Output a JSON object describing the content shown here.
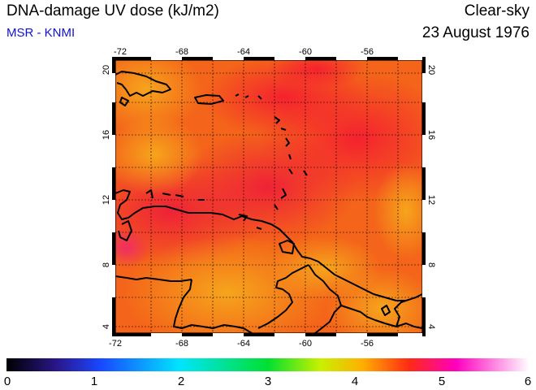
{
  "header": {
    "title": "DNA-damage UV dose (kJ/m2)",
    "source": "MSR - KNMI",
    "condition": "Clear-sky",
    "date": "23 August 1976"
  },
  "map": {
    "lon_range": [
      -72,
      -53
    ],
    "lat_range": [
      3.5,
      20.5
    ],
    "lon_ticks": [
      "-72",
      "-68",
      "-64",
      "-60",
      "-56"
    ],
    "lat_ticks": [
      "4",
      "8",
      "12",
      "16",
      "20"
    ],
    "grid": true,
    "field_colors": {
      "high": "#f01a2a",
      "mid": "#f45a12",
      "low": "#f5a41a"
    },
    "coastline_color": "#000000"
  },
  "colorbar": {
    "labels": [
      "0",
      "1",
      "2",
      "3",
      "4",
      "5",
      "6"
    ],
    "stops": [
      "#000000",
      "#3020b0",
      "#1860ff",
      "#00e8ff",
      "#00e840",
      "#b8f000",
      "#ffb000",
      "#ff2a14",
      "#ff00c8",
      "#ffffff"
    ]
  }
}
